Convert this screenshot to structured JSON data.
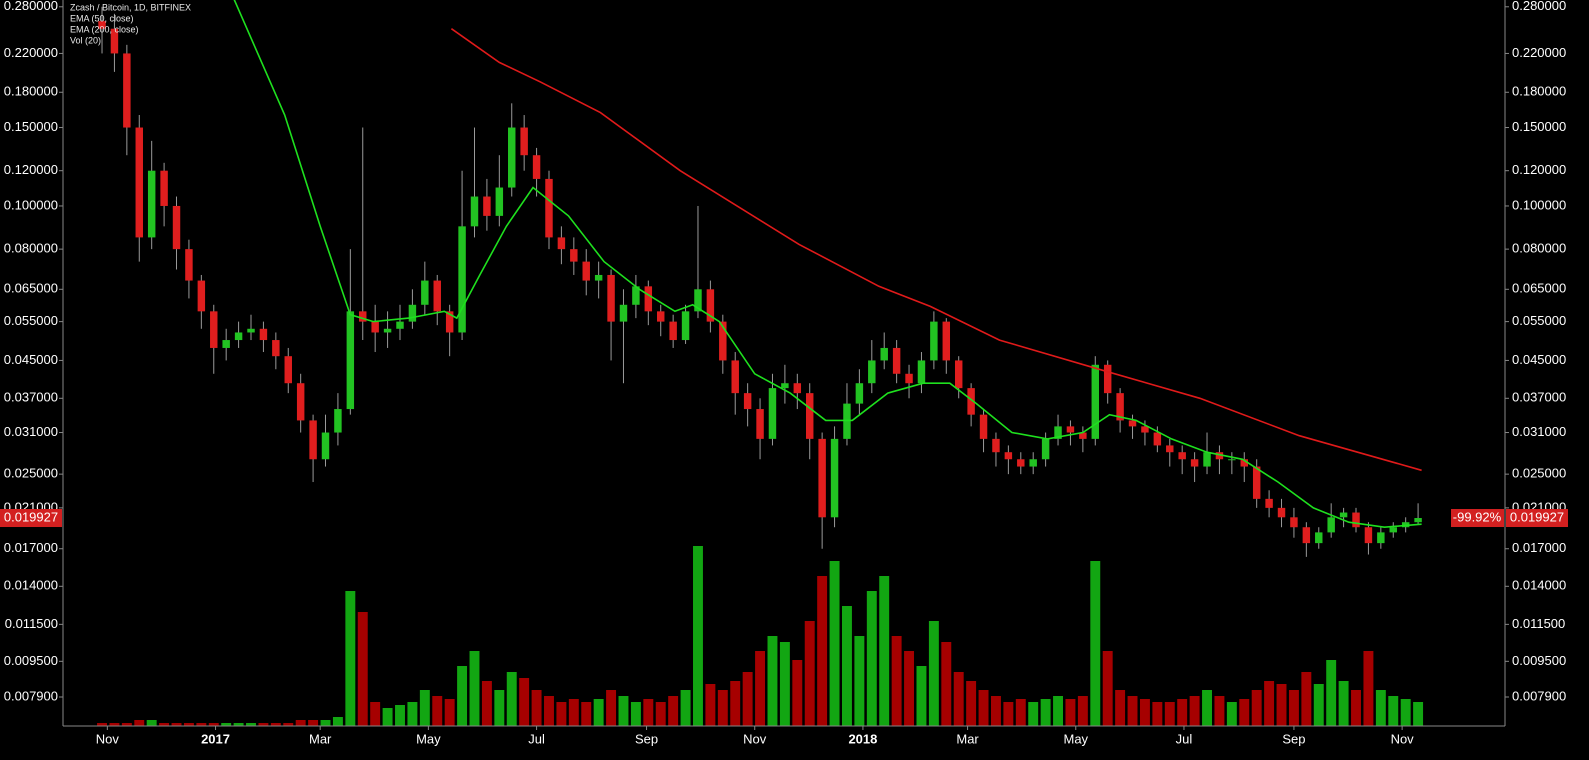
{
  "chart_data": {
    "type": "candlestick",
    "title": "Zcash / Bitcoin, 1D, BITFINEX",
    "volume_legend": "Vol (20)",
    "log_scale": true,
    "up_color": "#22c322",
    "down_color": "#e01e1e",
    "wick_color": "#9a9a9a",
    "volume_up_color": "#14b814",
    "volume_down_color": "#b80000",
    "x": [
      -3,
      4,
      11,
      18,
      25,
      32,
      39,
      46,
      53,
      60,
      67,
      74,
      81,
      88,
      95,
      102,
      109,
      116,
      123,
      130,
      137,
      144,
      151,
      158,
      165,
      172,
      179,
      186,
      193,
      200,
      207,
      214,
      221,
      228,
      235,
      242,
      249,
      256,
      263,
      270,
      277,
      284,
      291,
      298,
      305,
      312,
      319,
      326,
      333,
      340,
      347,
      354,
      361,
      368,
      375,
      382,
      389,
      396,
      403,
      410,
      417,
      424,
      431,
      438,
      445,
      452,
      459,
      466,
      473,
      480,
      487,
      494,
      501,
      508,
      515,
      522,
      529,
      536,
      543,
      550,
      557,
      564,
      571,
      578,
      585,
      592,
      599,
      606,
      613,
      620,
      627,
      634,
      641,
      648,
      655,
      662,
      669,
      676,
      683,
      690,
      697,
      704,
      711,
      718,
      725,
      732,
      739
    ],
    "open": [
      0.26,
      0.25,
      0.22,
      0.15,
      0.085,
      0.12,
      0.1,
      0.08,
      0.068,
      0.058,
      0.048,
      0.05,
      0.052,
      0.053,
      0.05,
      0.046,
      0.04,
      0.033,
      0.027,
      0.031,
      0.035,
      0.058,
      0.055,
      0.052,
      0.053,
      0.055,
      0.06,
      0.068,
      0.058,
      0.052,
      0.09,
      0.105,
      0.095,
      0.11,
      0.15,
      0.13,
      0.115,
      0.085,
      0.08,
      0.075,
      0.068,
      0.07,
      0.055,
      0.06,
      0.066,
      0.058,
      0.055,
      0.05,
      0.058,
      0.065,
      0.055,
      0.045,
      0.038,
      0.035,
      0.03,
      0.039,
      0.04,
      0.038,
      0.03,
      0.02,
      0.03,
      0.036,
      0.04,
      0.045,
      0.048,
      0.042,
      0.04,
      0.045,
      0.055,
      0.045,
      0.039,
      0.034,
      0.03,
      0.028,
      0.027,
      0.026,
      0.027,
      0.03,
      0.032,
      0.031,
      0.03,
      0.044,
      0.038,
      0.033,
      0.032,
      0.031,
      0.029,
      0.028,
      0.027,
      0.026,
      0.028,
      0.027,
      0.027,
      0.026,
      0.022,
      0.021,
      0.02,
      0.019,
      0.0175,
      0.0185,
      0.02,
      0.0205,
      0.019,
      0.0175,
      0.0185,
      0.019,
      0.0195
    ],
    "high": [
      0.28,
      0.27,
      0.23,
      0.16,
      0.14,
      0.125,
      0.105,
      0.084,
      0.07,
      0.06,
      0.053,
      0.055,
      0.057,
      0.055,
      0.052,
      0.048,
      0.042,
      0.034,
      0.034,
      0.038,
      0.08,
      0.15,
      0.06,
      0.058,
      0.06,
      0.065,
      0.075,
      0.07,
      0.06,
      0.12,
      0.15,
      0.115,
      0.13,
      0.17,
      0.16,
      0.135,
      0.12,
      0.09,
      0.085,
      0.08,
      0.075,
      0.072,
      0.065,
      0.07,
      0.068,
      0.06,
      0.057,
      0.06,
      0.1,
      0.068,
      0.057,
      0.047,
      0.04,
      0.037,
      0.042,
      0.044,
      0.042,
      0.04,
      0.031,
      0.032,
      0.04,
      0.043,
      0.05,
      0.052,
      0.05,
      0.044,
      0.047,
      0.058,
      0.056,
      0.046,
      0.04,
      0.035,
      0.031,
      0.029,
      0.028,
      0.028,
      0.031,
      0.034,
      0.033,
      0.032,
      0.046,
      0.045,
      0.039,
      0.034,
      0.033,
      0.032,
      0.03,
      0.029,
      0.028,
      0.031,
      0.029,
      0.028,
      0.028,
      0.027,
      0.023,
      0.022,
      0.021,
      0.0195,
      0.019,
      0.0215,
      0.021,
      0.021,
      0.0195,
      0.019,
      0.0195,
      0.02,
      0.0215
    ],
    "low": [
      0.22,
      0.2,
      0.13,
      0.075,
      0.08,
      0.09,
      0.072,
      0.062,
      0.053,
      0.042,
      0.045,
      0.048,
      0.05,
      0.047,
      0.043,
      0.038,
      0.031,
      0.024,
      0.026,
      0.029,
      0.034,
      0.05,
      0.047,
      0.048,
      0.05,
      0.053,
      0.057,
      0.054,
      0.046,
      0.05,
      0.085,
      0.088,
      0.09,
      0.105,
      0.12,
      0.105,
      0.08,
      0.074,
      0.07,
      0.063,
      0.062,
      0.045,
      0.04,
      0.056,
      0.054,
      0.051,
      0.048,
      0.049,
      0.056,
      0.052,
      0.042,
      0.034,
      0.032,
      0.027,
      0.029,
      0.036,
      0.035,
      0.027,
      0.017,
      0.019,
      0.029,
      0.034,
      0.038,
      0.043,
      0.04,
      0.037,
      0.038,
      0.043,
      0.042,
      0.037,
      0.032,
      0.028,
      0.026,
      0.025,
      0.025,
      0.025,
      0.026,
      0.029,
      0.029,
      0.028,
      0.029,
      0.036,
      0.031,
      0.03,
      0.029,
      0.028,
      0.026,
      0.025,
      0.024,
      0.025,
      0.025,
      0.025,
      0.024,
      0.021,
      0.02,
      0.019,
      0.018,
      0.0163,
      0.017,
      0.018,
      0.019,
      0.0185,
      0.0165,
      0.017,
      0.018,
      0.0185,
      0.0193
    ],
    "close": [
      0.25,
      0.22,
      0.15,
      0.085,
      0.12,
      0.1,
      0.08,
      0.068,
      0.058,
      0.048,
      0.05,
      0.052,
      0.053,
      0.05,
      0.046,
      0.04,
      0.033,
      0.027,
      0.031,
      0.035,
      0.058,
      0.055,
      0.052,
      0.053,
      0.055,
      0.06,
      0.068,
      0.058,
      0.052,
      0.09,
      0.105,
      0.095,
      0.11,
      0.15,
      0.13,
      0.115,
      0.085,
      0.08,
      0.075,
      0.068,
      0.07,
      0.055,
      0.06,
      0.066,
      0.058,
      0.055,
      0.05,
      0.058,
      0.065,
      0.055,
      0.045,
      0.038,
      0.035,
      0.03,
      0.039,
      0.04,
      0.038,
      0.03,
      0.02,
      0.03,
      0.036,
      0.04,
      0.045,
      0.048,
      0.042,
      0.04,
      0.045,
      0.055,
      0.045,
      0.039,
      0.034,
      0.03,
      0.028,
      0.027,
      0.026,
      0.027,
      0.03,
      0.032,
      0.031,
      0.03,
      0.044,
      0.038,
      0.033,
      0.032,
      0.031,
      0.029,
      0.028,
      0.027,
      0.026,
      0.028,
      0.027,
      0.027,
      0.026,
      0.022,
      0.021,
      0.02,
      0.019,
      0.0175,
      0.0185,
      0.02,
      0.0205,
      0.019,
      0.0175,
      0.0185,
      0.019,
      0.0195,
      0.019927
    ],
    "volume": [
      1,
      1,
      1,
      2,
      2,
      1,
      1,
      1,
      1,
      1,
      1,
      1,
      1,
      1,
      1,
      1,
      2,
      2,
      2,
      3,
      45,
      38,
      8,
      6,
      7,
      8,
      12,
      10,
      9,
      20,
      25,
      15,
      12,
      18,
      16,
      12,
      10,
      8,
      9,
      8,
      9,
      12,
      10,
      8,
      9,
      8,
      10,
      12,
      60,
      14,
      12,
      15,
      18,
      25,
      30,
      28,
      22,
      35,
      50,
      55,
      40,
      30,
      45,
      50,
      30,
      25,
      20,
      35,
      28,
      18,
      15,
      12,
      10,
      8,
      9,
      8,
      9,
      10,
      9,
      10,
      55,
      25,
      12,
      10,
      9,
      8,
      8,
      9,
      10,
      12,
      10,
      8,
      9,
      12,
      15,
      14,
      12,
      18,
      14,
      22,
      15,
      12,
      25,
      12,
      10,
      9,
      8
    ],
    "lines": [
      {
        "name": "EMA (50, close)",
        "color": "#1ee01e",
        "x": [
          70,
          100,
          120,
          137,
          150,
          170,
          190,
          197,
          210,
          225,
          240,
          260,
          280,
          300,
          320,
          330,
          345,
          365,
          385,
          405,
          420,
          440,
          460,
          475,
          490,
          510,
          530,
          550,
          565,
          580,
          600,
          620,
          640,
          660,
          680,
          700,
          720,
          741
        ],
        "values": [
          0.3,
          0.16,
          0.09,
          0.057,
          0.055,
          0.056,
          0.058,
          0.056,
          0.07,
          0.09,
          0.11,
          0.095,
          0.075,
          0.065,
          0.058,
          0.06,
          0.055,
          0.042,
          0.038,
          0.033,
          0.033,
          0.038,
          0.04,
          0.04,
          0.036,
          0.031,
          0.03,
          0.031,
          0.034,
          0.033,
          0.03,
          0.028,
          0.027,
          0.024,
          0.021,
          0.0195,
          0.019,
          0.0193
        ]
      },
      {
        "name": "EMA (200, close)",
        "color": "#e01a1a",
        "x": [
          194,
          221,
          244,
          278,
          323,
          390,
          435,
          464,
          503,
          559,
          616,
          672,
          741
        ],
        "values": [
          0.25,
          0.21,
          0.19,
          0.162,
          0.12,
          0.082,
          0.066,
          0.0595,
          0.05,
          0.043,
          0.037,
          0.0305,
          0.0255
        ]
      }
    ],
    "change_label": "-99.92%",
    "xlim": [
      -25,
      788
    ],
    "xticks": [
      {
        "value": 0,
        "label": "Nov"
      },
      {
        "value": 61,
        "label": "2017"
      },
      {
        "value": 120,
        "label": "Mar"
      },
      {
        "value": 181,
        "label": "May"
      },
      {
        "value": 242,
        "label": "Jul"
      },
      {
        "value": 304,
        "label": "Sep"
      },
      {
        "value": 365,
        "label": "Nov"
      },
      {
        "value": 426,
        "label": "2018"
      },
      {
        "value": 485,
        "label": "Mar"
      },
      {
        "value": 546,
        "label": "May"
      },
      {
        "value": 607,
        "label": "Jul"
      },
      {
        "value": 669,
        "label": "Sep"
      },
      {
        "value": 730,
        "label": "Nov"
      }
    ],
    "ylim": [
      0.0068,
      0.29
    ],
    "yticks": [
      {
        "value": 0.28,
        "label": "0.280000"
      },
      {
        "value": 0.22,
        "label": "0.220000"
      },
      {
        "value": 0.18,
        "label": "0.180000"
      },
      {
        "value": 0.15,
        "label": "0.150000"
      },
      {
        "value": 0.12,
        "label": "0.120000"
      },
      {
        "value": 0.1,
        "label": "0.100000"
      },
      {
        "value": 0.08,
        "label": "0.080000"
      },
      {
        "value": 0.065,
        "label": "0.065000"
      },
      {
        "value": 0.055,
        "label": "0.055000"
      },
      {
        "value": 0.045,
        "label": "0.045000"
      },
      {
        "value": 0.037,
        "label": "0.037000"
      },
      {
        "value": 0.031,
        "label": "0.031000"
      },
      {
        "value": 0.025,
        "label": "0.025000"
      },
      {
        "value": 0.021,
        "label": "0.021000"
      },
      {
        "value": 0.017,
        "label": "0.017000"
      },
      {
        "value": 0.014,
        "label": "0.014000"
      },
      {
        "value": 0.0115,
        "label": "0.011500"
      },
      {
        "value": 0.0095,
        "label": "0.009500"
      },
      {
        "value": 0.0079,
        "label": "0.007900"
      }
    ]
  }
}
